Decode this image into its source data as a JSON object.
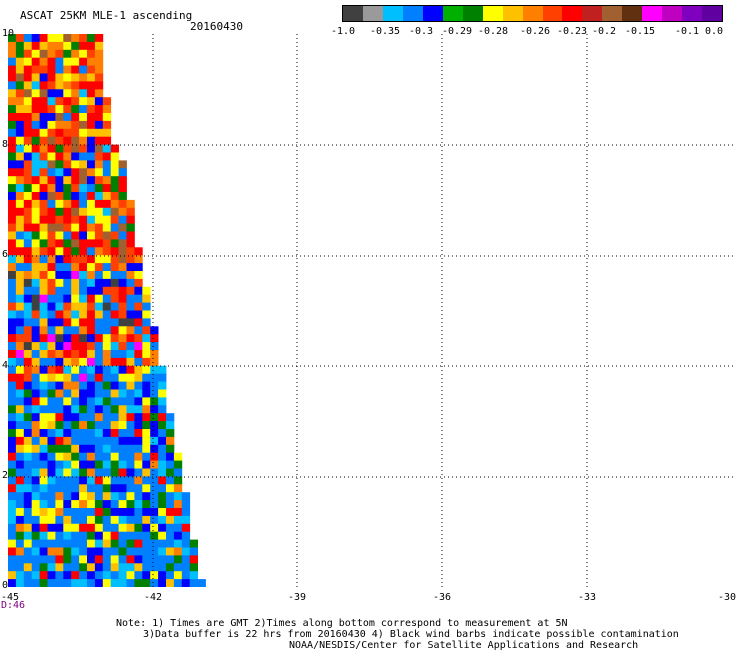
{
  "header": {
    "title": "ASCAT 25KM MLE-1 ascending",
    "date": "20160430"
  },
  "colorbar": {
    "colors": [
      "#404040",
      "#9a9a9a",
      "#00bfff",
      "#0080ff",
      "#0000ff",
      "#00b000",
      "#008000",
      "#ffff00",
      "#ffc000",
      "#ff8000",
      "#ff4000",
      "#ff0000",
      "#c02020",
      "#a06030",
      "#603010",
      "#ff00ff",
      "#c000c0",
      "#8000c0",
      "#6000a0"
    ],
    "labels": [
      "-1.0",
      "-0.35",
      "-0.3",
      "-0.29",
      "-0.28",
      "-0.26",
      "-0.23",
      "-0.2",
      "-0.15",
      "-0.1",
      "0.0"
    ]
  },
  "map": {
    "y_ticks": [
      "0",
      "2",
      "4",
      "6",
      "8",
      "10"
    ],
    "x_ticks": [
      "-45",
      "-42",
      "-39",
      "-36",
      "-33",
      "-30"
    ],
    "x_range": [
      -45,
      -30
    ],
    "y_range": [
      0,
      10
    ],
    "grid": "dotted",
    "swath_color_indices": "random-mixture"
  },
  "footer": {
    "station_tag": "D:46",
    "note_line1": "Note: 1) Times are GMT 2)Times along bottom correspond to measurement at 5N",
    "note_line2": "3)Data buffer is 22 hrs from 20160430 4) Black wind barbs indicate possible contamination",
    "note_line3": "NOAA/NESDIS/Center for Satellite Applications and Research"
  }
}
